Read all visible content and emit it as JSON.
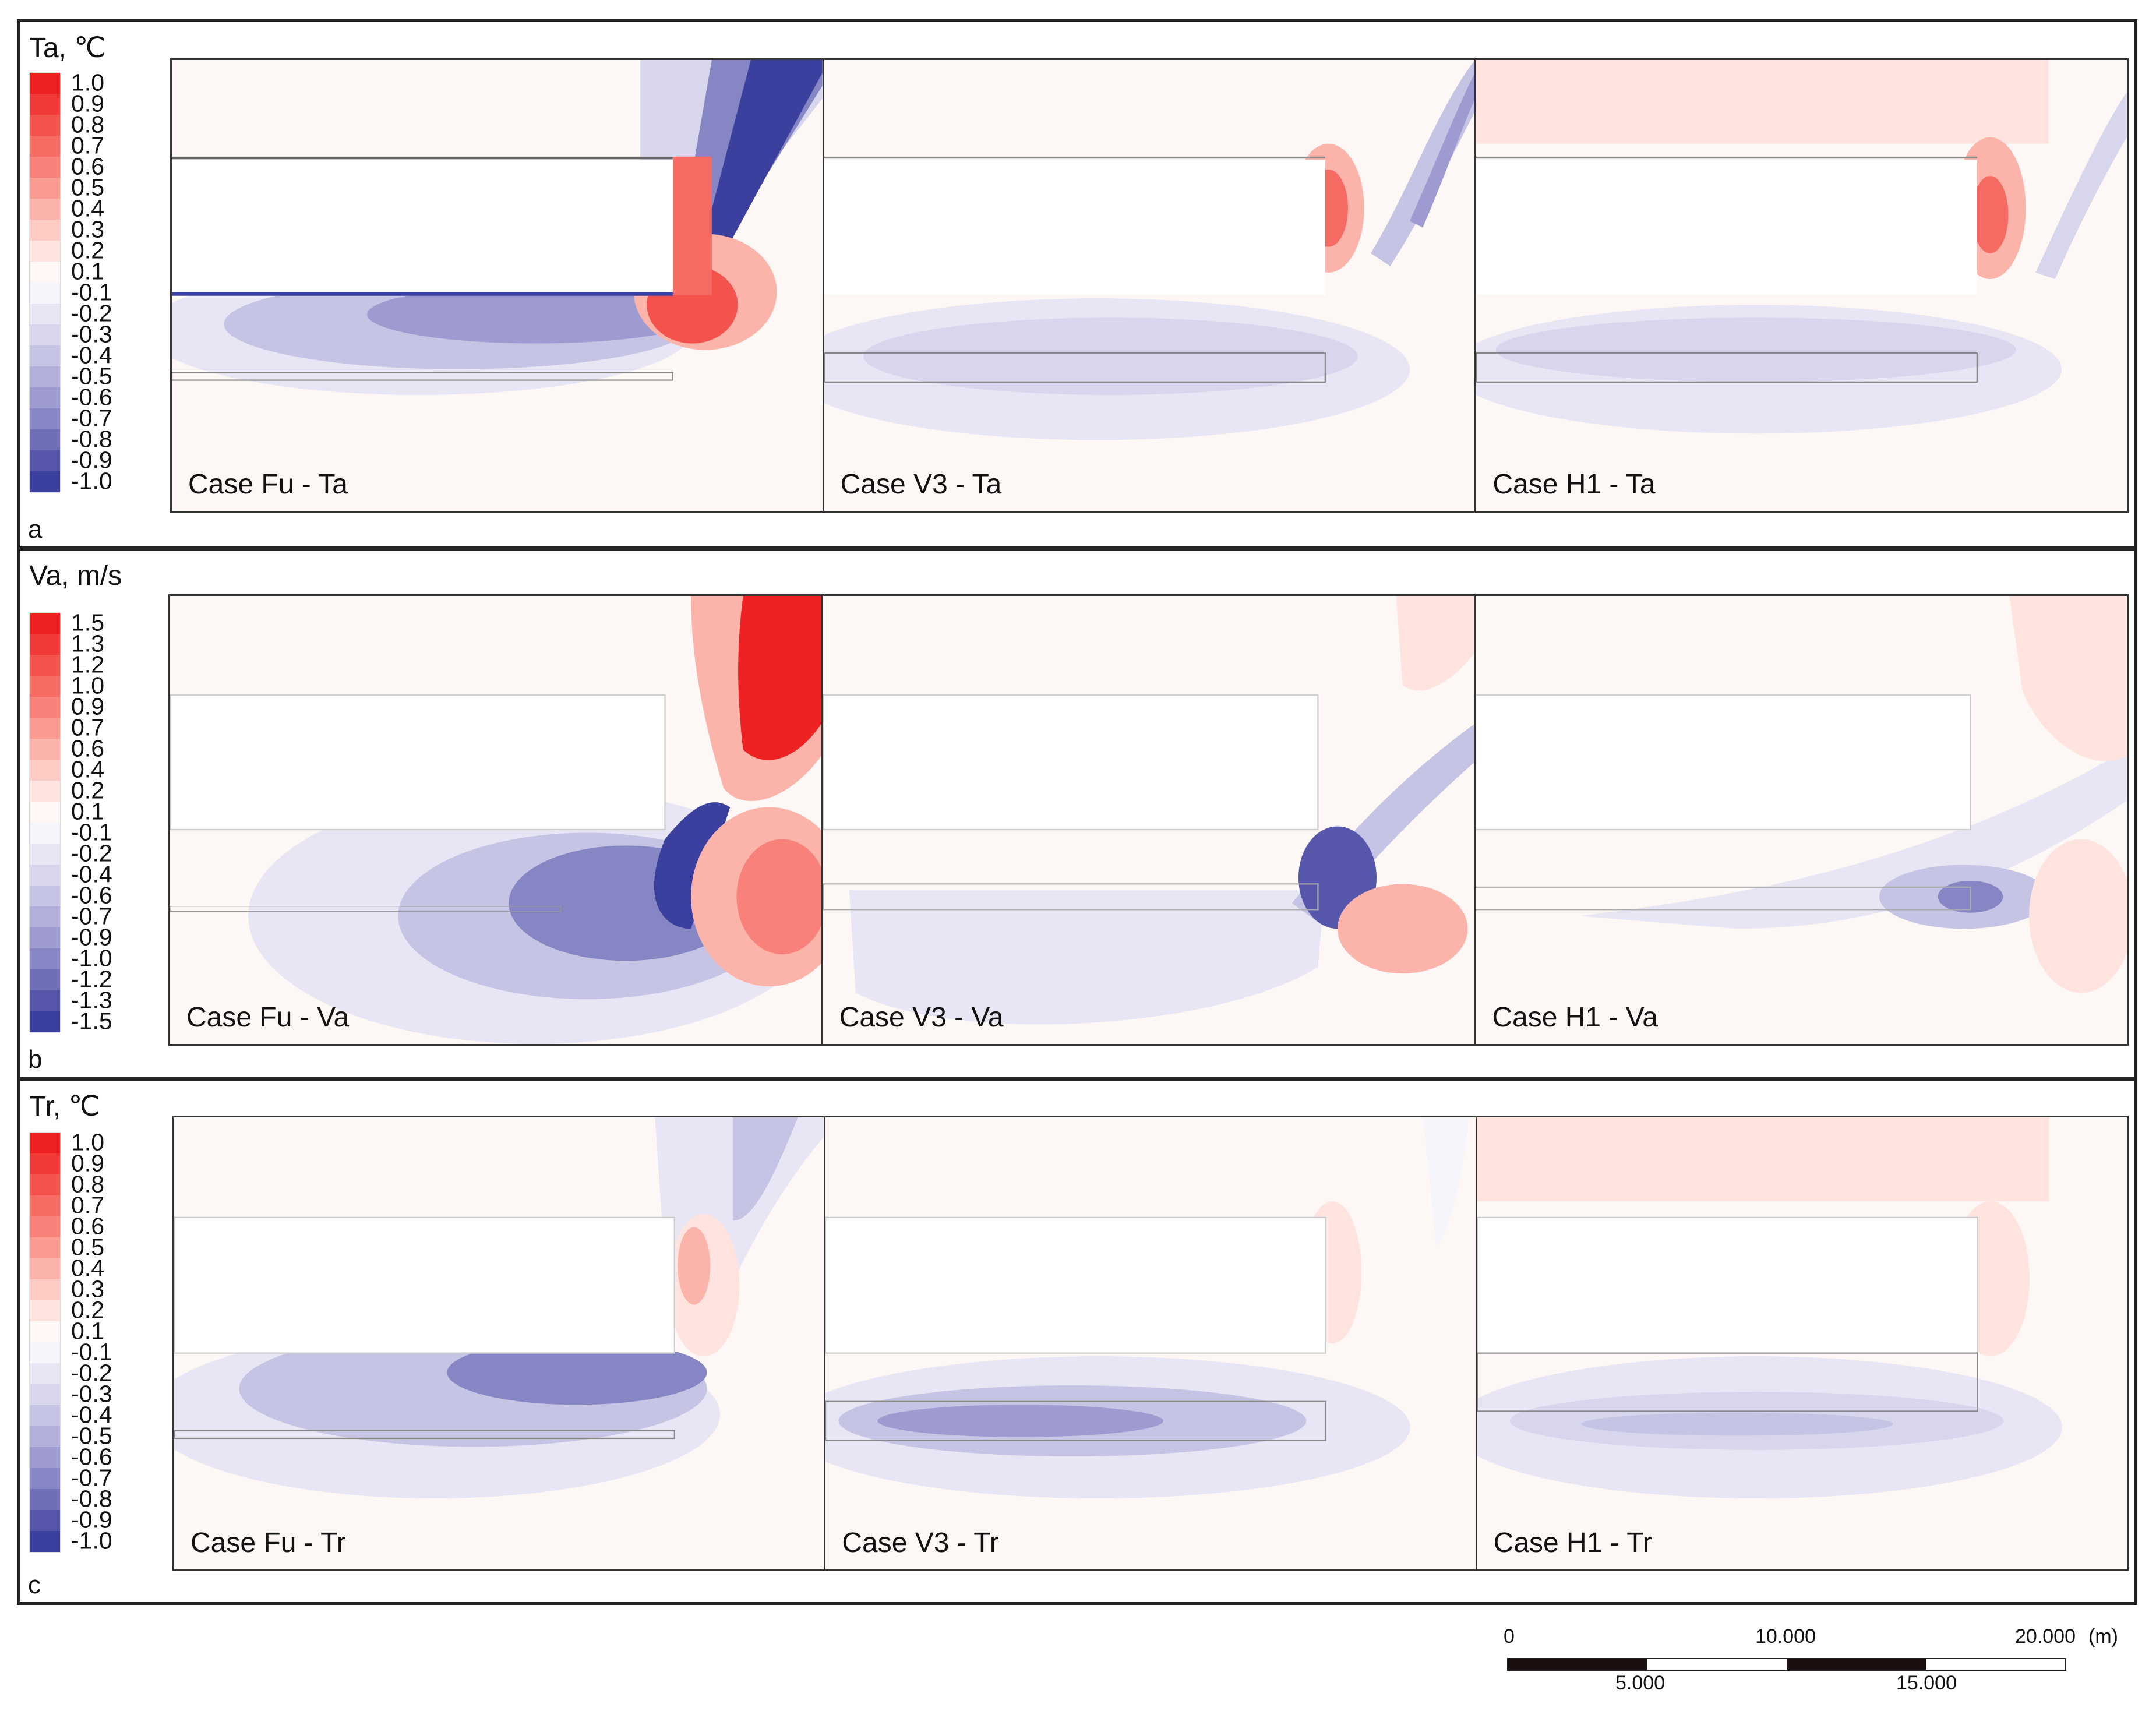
{
  "rows": [
    {
      "letter": "a",
      "legend_title": "Ta, ℃",
      "legend_ticks": [
        "1.0",
        "0.9",
        "0.8",
        "0.7",
        "0.6",
        "0.5",
        "0.4",
        "0.3",
        "0.2",
        "0.1",
        "-0.1",
        "-0.2",
        "-0.3",
        "-0.4",
        "-0.5",
        "-0.6",
        "-0.7",
        "-0.8",
        "-0.9",
        "-1.0"
      ],
      "panels": [
        "Case Fu - Ta",
        "Case V3 - Ta",
        "Case H1 - Ta"
      ]
    },
    {
      "letter": "b",
      "legend_title": "Va, m/s",
      "legend_ticks": [
        "1.5",
        "1.3",
        "1.2",
        "1.0",
        "0.9",
        "0.7",
        "0.6",
        "0.4",
        "0.2",
        "0.1",
        "-0.1",
        "-0.2",
        "-0.4",
        "-0.6",
        "-0.7",
        "-0.9",
        "-1.0",
        "-1.2",
        "-1.3",
        "-1.5"
      ],
      "panels": [
        "Case Fu - Va",
        "Case V3 - Va",
        "Case H1 - Va"
      ]
    },
    {
      "letter": "c",
      "legend_title": "Tr, ℃",
      "legend_ticks": [
        "1.0",
        "0.9",
        "0.8",
        "0.7",
        "0.6",
        "0.5",
        "0.4",
        "0.3",
        "0.2",
        "0.1",
        "-0.1",
        "-0.2",
        "-0.3",
        "-0.4",
        "-0.5",
        "-0.6",
        "-0.7",
        "-0.8",
        "-0.9",
        "-1.0"
      ],
      "panels": [
        "Case Fu - Tr",
        "Case V3 - Tr",
        "Case H1 - Tr"
      ]
    }
  ],
  "legend_colors": [
    "#ee2222",
    "#f13a37",
    "#f4524d",
    "#f66a64",
    "#f8827a",
    "#fa9b92",
    "#fbb3aa",
    "#fdcbc4",
    "#fee3de",
    "#fff8f6",
    "#f6f5fb",
    "#e8e6f4",
    "#d8d6ed",
    "#c6c4e4",
    "#b2b0da",
    "#9d9bcf",
    "#8786c4",
    "#6f6fb8",
    "#5657ab",
    "#3b3f9e"
  ],
  "scale_bar": {
    "top_labels": [
      "0",
      "10.000",
      "20.000"
    ],
    "unit": "(m)",
    "bottom_labels": [
      "5.000",
      "15.000"
    ]
  }
}
